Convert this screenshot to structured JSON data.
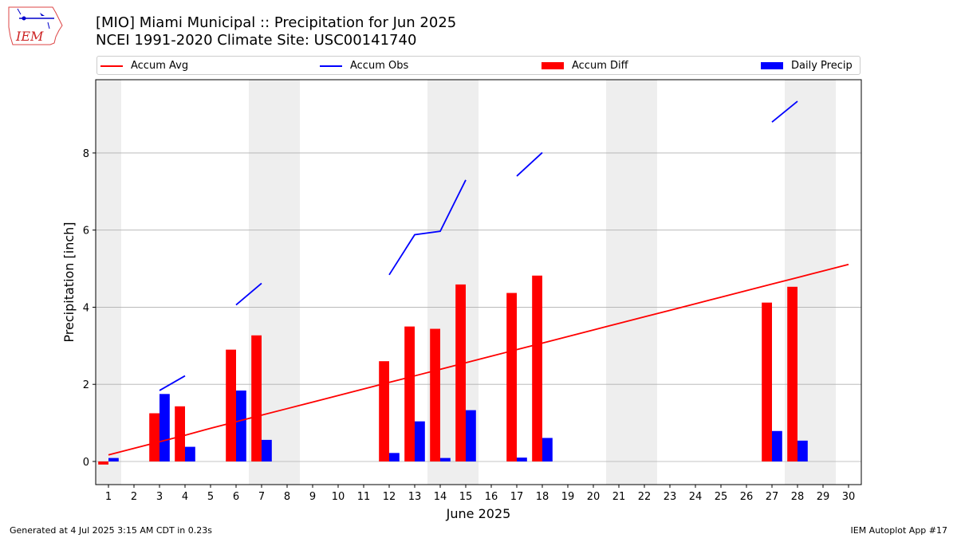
{
  "header": {
    "title_line1": "[MIO] Miami Municipal :: Precipitation for Jun 2025",
    "title_line2": "NCEI 1991-2020 Climate Site: USC00141740",
    "logo_text": "IEM"
  },
  "legend": {
    "items": [
      {
        "label": "Accum Avg",
        "kind": "line",
        "color": "#ff0000"
      },
      {
        "label": "Accum Obs",
        "kind": "line",
        "color": "#0000ff"
      },
      {
        "label": "Accum Diff",
        "kind": "box",
        "color": "#ff0000"
      },
      {
        "label": "Daily Precip",
        "kind": "box",
        "color": "#0000ff"
      }
    ]
  },
  "footer": {
    "generated": "Generated at 4 Jul 2025 3:15 AM CDT in 0.23s",
    "app": "IEM Autoplot App #17"
  },
  "chart_data": {
    "type": "bar",
    "xlabel": "June 2025",
    "ylabel": "Precipitation [inch]",
    "x": [
      1,
      2,
      3,
      4,
      5,
      6,
      7,
      8,
      9,
      10,
      11,
      12,
      13,
      14,
      15,
      16,
      17,
      18,
      19,
      20,
      21,
      22,
      23,
      24,
      25,
      26,
      27,
      28,
      29,
      30
    ],
    "xlim": [
      0.5,
      30.5
    ],
    "ylim": [
      -0.6,
      9.9
    ],
    "yticks": [
      0,
      2,
      4,
      6,
      8
    ],
    "grid": "y",
    "weekend_shading": [
      [
        0.5,
        1.5
      ],
      [
        6.5,
        8.5
      ],
      [
        13.5,
        15.5
      ],
      [
        20.5,
        22.5
      ],
      [
        27.5,
        29.5
      ]
    ],
    "series": [
      {
        "name": "Daily Precip",
        "kind": "bar",
        "color": "#0000ff",
        "values": [
          0.09,
          null,
          1.75,
          0.38,
          null,
          1.84,
          0.56,
          null,
          null,
          null,
          null,
          0.22,
          1.04,
          0.09,
          1.33,
          null,
          0.1,
          0.61,
          null,
          null,
          null,
          null,
          null,
          null,
          null,
          null,
          0.79,
          0.54,
          null,
          null
        ]
      },
      {
        "name": "Accum Diff",
        "kind": "bar",
        "color": "#ff0000",
        "values": [
          -0.08,
          null,
          1.25,
          1.43,
          null,
          2.9,
          3.27,
          null,
          null,
          null,
          null,
          2.6,
          3.5,
          3.44,
          4.59,
          null,
          4.37,
          4.82,
          null,
          null,
          null,
          null,
          null,
          null,
          null,
          null,
          4.12,
          4.53,
          null,
          null
        ]
      },
      {
        "name": "Accum Obs",
        "kind": "line",
        "color": "#0000ff",
        "values": [
          null,
          null,
          1.84,
          2.22,
          null,
          4.06,
          4.62,
          null,
          null,
          null,
          null,
          4.84,
          5.88,
          5.97,
          7.3,
          null,
          7.4,
          8.01,
          null,
          null,
          null,
          null,
          null,
          null,
          null,
          null,
          8.8,
          9.34,
          null,
          null
        ]
      },
      {
        "name": "Accum Avg",
        "kind": "line",
        "color": "#ff0000",
        "values": [
          0.17,
          0.34,
          0.51,
          0.68,
          0.86,
          1.03,
          1.2,
          1.37,
          1.54,
          1.71,
          1.88,
          2.05,
          2.22,
          2.39,
          2.56,
          2.73,
          2.9,
          3.07,
          3.24,
          3.41,
          3.58,
          3.75,
          3.92,
          4.09,
          4.26,
          4.43,
          4.6,
          4.77,
          4.94,
          5.11
        ]
      }
    ]
  }
}
